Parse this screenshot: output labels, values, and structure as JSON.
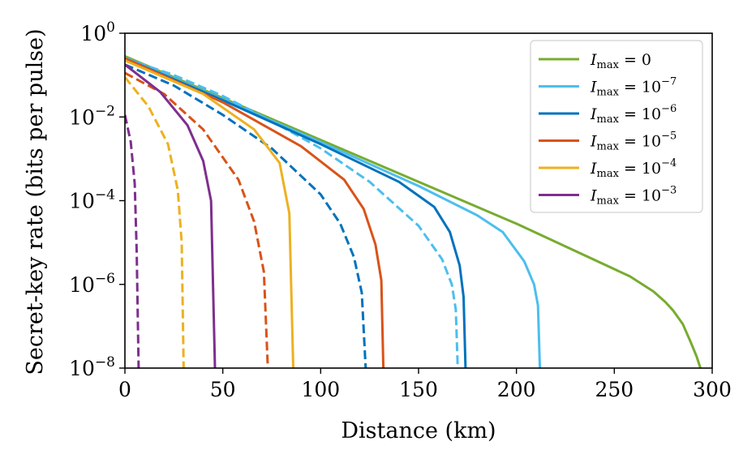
{
  "chart_data": {
    "type": "line",
    "xlabel": "Distance (km)",
    "ylabel": "Secret-key rate (bits per pulse)",
    "xlim": [
      0,
      300
    ],
    "ylim_log10": [
      -8,
      0
    ],
    "x_ticks": [
      {
        "value": 0,
        "label": "0"
      },
      {
        "value": 50,
        "label": "50"
      },
      {
        "value": 100,
        "label": "100"
      },
      {
        "value": 150,
        "label": "150"
      },
      {
        "value": 200,
        "label": "200"
      },
      {
        "value": 250,
        "label": "250"
      },
      {
        "value": 300,
        "label": "300"
      }
    ],
    "y_ticks": [
      {
        "exp": 0,
        "base": "10",
        "sup": "0"
      },
      {
        "exp": -2,
        "base": "10",
        "sup": "−2"
      },
      {
        "exp": -4,
        "base": "10",
        "sup": "−4"
      },
      {
        "exp": -6,
        "base": "10",
        "sup": "−6"
      },
      {
        "exp": -8,
        "base": "10",
        "sup": "−8"
      }
    ],
    "legend_position": "top-right",
    "series": [
      {
        "name": "I_max = 0",
        "legend_main": "I",
        "legend_sub": "max",
        "legend_eq": " = 0",
        "legend_sup": "",
        "color": "#77ac30",
        "style": "solid",
        "x": [
          0,
          50,
          100,
          150,
          200,
          258,
          270,
          276,
          280,
          285,
          289,
          292,
          294
        ],
        "log10_y": [
          -0.55,
          -1.55,
          -2.55,
          -3.55,
          -4.55,
          -5.81,
          -6.17,
          -6.42,
          -6.62,
          -6.95,
          -7.38,
          -7.72,
          -8
        ]
      },
      {
        "name": "I_max = 10^-7",
        "legend_main": "I",
        "legend_sub": "max",
        "legend_eq": " = 10",
        "legend_sup": "−7",
        "color": "#4dbeee",
        "style": "solid",
        "x": [
          0,
          50,
          100,
          150,
          180,
          193,
          204,
          209,
          211,
          212
        ],
        "log10_y": [
          -0.58,
          -1.58,
          -2.6,
          -3.65,
          -4.35,
          -4.75,
          -5.45,
          -6.0,
          -6.5,
          -8
        ]
      },
      {
        "name": "I_max = 10^-7 (dashed)",
        "color": "#4dbeee",
        "style": "dashed",
        "x": [
          0,
          25,
          50,
          75,
          100,
          125,
          150,
          162,
          167,
          169,
          170
        ],
        "log10_y": [
          -0.6,
          -1.0,
          -1.5,
          -2.1,
          -2.75,
          -3.55,
          -4.6,
          -5.4,
          -6.0,
          -6.6,
          -8
        ]
      },
      {
        "name": "I_max = 10^-6",
        "legend_main": "I",
        "legend_sub": "max",
        "legend_eq": " = 10",
        "legend_sup": "−6",
        "color": "#0072bd",
        "style": "solid",
        "x": [
          0,
          50,
          100,
          140,
          158,
          166,
          171,
          173,
          174
        ],
        "log10_y": [
          -0.6,
          -1.6,
          -2.65,
          -3.55,
          -4.15,
          -4.75,
          -5.55,
          -6.3,
          -8
        ]
      },
      {
        "name": "I_max = 10^-6 (dashed)",
        "color": "#0072bd",
        "style": "dashed",
        "x": [
          0,
          25,
          50,
          75,
          100,
          110,
          117,
          121,
          123
        ],
        "log10_y": [
          -0.75,
          -1.25,
          -1.95,
          -2.75,
          -3.85,
          -4.55,
          -5.35,
          -6.2,
          -8
        ]
      },
      {
        "name": "I_max = 10^-5",
        "legend_main": "I",
        "legend_sub": "max",
        "legend_eq": " = 10",
        "legend_sup": "−5",
        "color": "#d95319",
        "style": "solid",
        "x": [
          0,
          50,
          90,
          112,
          122,
          128,
          131,
          132
        ],
        "log10_y": [
          -0.6,
          -1.65,
          -2.7,
          -3.5,
          -4.2,
          -5.05,
          -5.9,
          -8
        ]
      },
      {
        "name": "I_max = 10^-5 (dashed)",
        "color": "#d95319",
        "style": "dashed",
        "x": [
          0,
          20,
          40,
          58,
          66,
          71,
          73
        ],
        "log10_y": [
          -0.95,
          -1.45,
          -2.3,
          -3.5,
          -4.5,
          -5.7,
          -8
        ]
      },
      {
        "name": "I_max = 10^-4",
        "legend_main": "I",
        "legend_sub": "max",
        "legend_eq": " = 10",
        "legend_sup": "−4",
        "color": "#edb120",
        "style": "solid",
        "x": [
          0,
          40,
          66,
          79,
          84,
          86
        ],
        "log10_y": [
          -0.65,
          -1.45,
          -2.3,
          -3.1,
          -4.3,
          -8
        ]
      },
      {
        "name": "I_max = 10^-4 (dashed)",
        "color": "#edb120",
        "style": "dashed",
        "x": [
          0,
          12,
          22,
          27,
          29,
          30
        ],
        "log10_y": [
          -1.05,
          -1.75,
          -2.65,
          -3.75,
          -5.0,
          -8
        ]
      },
      {
        "name": "I_max = 10^-3",
        "legend_main": "I",
        "legend_sub": "max",
        "legend_eq": " = 10",
        "legend_sup": "−3",
        "color": "#7e2f8e",
        "style": "solid",
        "x": [
          0,
          18,
          32,
          40,
          44,
          46
        ],
        "log10_y": [
          -0.75,
          -1.4,
          -2.2,
          -3.05,
          -4.0,
          -8
        ]
      },
      {
        "name": "I_max = 10^-3 (dashed)",
        "color": "#7e2f8e",
        "style": "dashed",
        "x": [
          0,
          3,
          5,
          6,
          7
        ],
        "log10_y": [
          -1.95,
          -2.6,
          -3.6,
          -5.2,
          -8
        ]
      }
    ]
  }
}
